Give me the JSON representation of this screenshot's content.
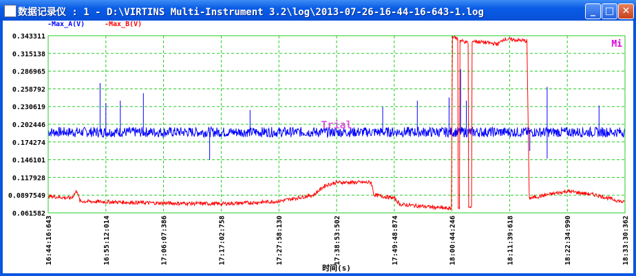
{
  "window": {
    "title": "数据记录仪 : 1 - D:\\VIRTINS Multi-Instrument 3.2\\log\\2013-07-26-16-44-16-643-1.log",
    "minimize": "_",
    "maximize": "□",
    "close": "✕"
  },
  "legend": [
    {
      "label": "-Max_A(V)",
      "color": "#0000ff"
    },
    {
      "label": "-Max_B(V)",
      "color": "#ff0000"
    }
  ],
  "badge": "Mi",
  "watermark": "Trial",
  "chart_data": {
    "type": "line",
    "xlabel": "时间(s)",
    "ylim": [
      0.061582,
      0.343311
    ],
    "yticks": [
      "0.343311",
      "0.315138",
      "0.286965",
      "0.258792",
      "0.230619",
      "0.202446",
      "0.174274",
      "0.146101",
      "0.117928",
      "0.0897549",
      "0.061582"
    ],
    "xticks": [
      "16:44:16:643",
      "16:55:12:014",
      "17:06:07:386",
      "17:17:02:758",
      "17:27:58:130",
      "17:38:53:502",
      "17:49:48:874",
      "18:00:44:246",
      "18:11:39:618",
      "18:22:34:990",
      "18:33:30:362"
    ],
    "grid": true,
    "series": [
      {
        "name": "Max_A(V)",
        "color": "#0000ff",
        "baseline": 0.19,
        "noise": 0.008,
        "spikes": [
          [
            0.09,
            0.268
          ],
          [
            0.1,
            0.236
          ],
          [
            0.125,
            0.24
          ],
          [
            0.165,
            0.252
          ],
          [
            0.28,
            0.146
          ],
          [
            0.35,
            0.225
          ],
          [
            0.58,
            0.23
          ],
          [
            0.64,
            0.24
          ],
          [
            0.695,
            0.245
          ],
          [
            0.715,
            0.29
          ],
          [
            0.725,
            0.24
          ],
          [
            0.835,
            0.16
          ],
          [
            0.865,
            0.262
          ],
          [
            0.865,
            0.148
          ],
          [
            0.955,
            0.232
          ]
        ]
      },
      {
        "name": "Max_B(V)",
        "color": "#ff0000",
        "noise": 0.003,
        "points": [
          [
            0,
            0.088
          ],
          [
            0.04,
            0.085
          ],
          [
            0.05,
            0.097
          ],
          [
            0.055,
            0.08
          ],
          [
            0.1,
            0.079
          ],
          [
            0.2,
            0.077
          ],
          [
            0.3,
            0.076
          ],
          [
            0.36,
            0.078
          ],
          [
            0.4,
            0.08
          ],
          [
            0.46,
            0.09
          ],
          [
            0.48,
            0.105
          ],
          [
            0.5,
            0.11
          ],
          [
            0.56,
            0.11
          ],
          [
            0.565,
            0.09
          ],
          [
            0.6,
            0.085
          ],
          [
            0.61,
            0.075
          ],
          [
            0.699,
            0.068
          ],
          [
            0.701,
            0.343
          ],
          [
            0.71,
            0.338
          ],
          [
            0.711,
            0.07
          ],
          [
            0.713,
            0.07
          ],
          [
            0.714,
            0.336
          ],
          [
            0.728,
            0.332
          ],
          [
            0.729,
            0.07
          ],
          [
            0.734,
            0.07
          ],
          [
            0.735,
            0.335
          ],
          [
            0.78,
            0.33
          ],
          [
            0.79,
            0.338
          ],
          [
            0.83,
            0.335
          ],
          [
            0.834,
            0.085
          ],
          [
            0.9,
            0.096
          ],
          [
            0.95,
            0.09
          ],
          [
            1,
            0.078
          ]
        ]
      }
    ]
  }
}
